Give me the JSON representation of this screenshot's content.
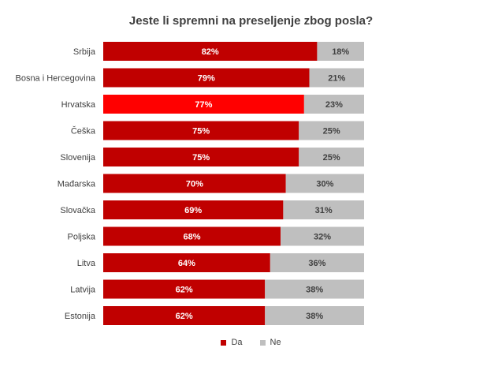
{
  "chart_data": {
    "type": "bar",
    "orientation": "horizontal",
    "stacked": true,
    "title": "Jeste li spremni na preseljenje zbog posla?",
    "categories": [
      "Srbija",
      "Bosna i Hercegovina",
      "Hrvatska",
      "Češka",
      "Slovenija",
      "Mađarska",
      "Slovačka",
      "Poljska",
      "Litva",
      "Latvija",
      "Estonija"
    ],
    "series": [
      {
        "name": "Da",
        "values": [
          82,
          79,
          77,
          75,
          75,
          70,
          69,
          68,
          64,
          62,
          62
        ],
        "color": "#c00000",
        "highlight_color": "#ff0000",
        "highlight_index": 2
      },
      {
        "name": "Ne",
        "values": [
          18,
          21,
          23,
          25,
          25,
          30,
          31,
          32,
          36,
          38,
          38
        ],
        "color": "#bfbfbf"
      }
    ],
    "value_format": "{v}%",
    "xlim": [
      0,
      100
    ],
    "legend_position": "bottom",
    "grid": false
  }
}
